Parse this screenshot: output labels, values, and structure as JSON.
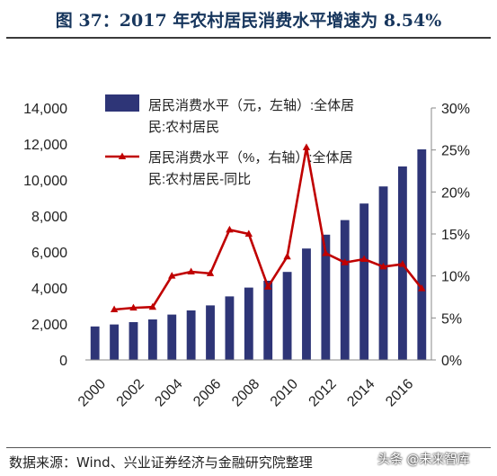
{
  "title": "图 37：2017 年农村居民消费水平增速为 8.54%",
  "source": "数据来源：Wind、兴业证券经济与金融研究院整理",
  "watermark": "头条 @未来智库",
  "chart_data": {
    "type": "bar+line",
    "categories": [
      2000,
      2001,
      2002,
      2003,
      2004,
      2005,
      2006,
      2007,
      2008,
      2009,
      2010,
      2011,
      2012,
      2013,
      2014,
      2015,
      2016,
      2017
    ],
    "x_tick_labels": [
      "2000",
      "2002",
      "2004",
      "2006",
      "2008",
      "2010",
      "2012",
      "2014",
      "2016"
    ],
    "left_axis": {
      "min": 0,
      "max": 14000,
      "ticks": [
        "0",
        "2,000",
        "4,000",
        "6,000",
        "8,000",
        "10,000",
        "12,000",
        "14,000"
      ]
    },
    "right_axis": {
      "min": 0,
      "max": 30,
      "ticks": [
        "0%",
        "5%",
        "10%",
        "15%",
        "20%",
        "25%",
        "30%"
      ]
    },
    "series": [
      {
        "name": "居民消费水平（元，左轴）:全体居民:农村居民",
        "legend_line1": "居民消费水平（元，左轴）:全体居",
        "legend_line2": "民:农村居民",
        "axis": "left",
        "kind": "bar",
        "color": "#2e3577",
        "values": [
          1860,
          1970,
          2100,
          2250,
          2520,
          2750,
          3030,
          3530,
          4020,
          4400,
          4890,
          6190,
          6960,
          7770,
          8690,
          9640,
          10750,
          11700
        ]
      },
      {
        "name": "居民消费水平（%，右轴）:全体居民:农村居民-同比",
        "legend_line1": "居民消费水平（%，右轴）:全体居",
        "legend_line2": "民:农村居民-同比",
        "axis": "right",
        "kind": "line",
        "color": "#c00000",
        "values": [
          null,
          6.0,
          6.2,
          6.3,
          10.0,
          10.5,
          10.3,
          15.5,
          15.0,
          8.7,
          12.3,
          25.3,
          12.7,
          11.6,
          12.0,
          11.1,
          11.4,
          8.5
        ]
      }
    ]
  }
}
